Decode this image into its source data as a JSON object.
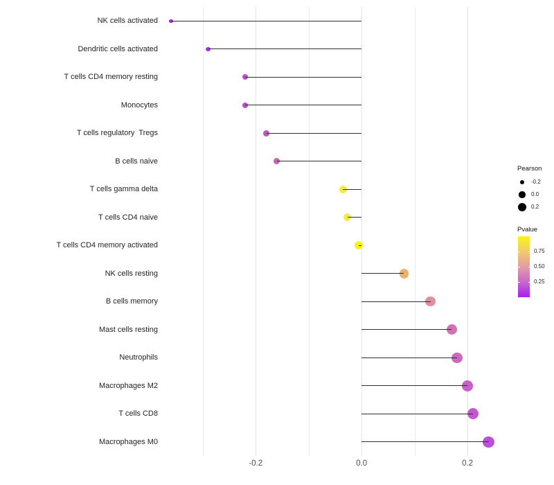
{
  "chart_data": {
    "type": "lollipop",
    "orientation": "horizontal",
    "title": "",
    "xlabel": "",
    "ylabel": "",
    "x_axis": {
      "min": -0.373,
      "max": 0.281,
      "gridlines": [
        -0.3,
        -0.2,
        -0.1,
        0,
        0.1,
        0.2
      ],
      "major_ticks": [
        -0.2,
        0,
        0.2
      ],
      "ticks": [
        {
          "value": -0.2,
          "label": "-0.2"
        },
        {
          "value": 0.0,
          "label": "0.0"
        },
        {
          "value": 0.2,
          "label": "0.2"
        }
      ]
    },
    "rows": [
      {
        "label": "NK cells activated",
        "pearson": -0.36,
        "pvalue_approx": 0.02,
        "color": "#9b2be1"
      },
      {
        "label": "Dendritic cells activated",
        "pearson": -0.29,
        "pvalue_approx": 0.09,
        "color": "#a637db"
      },
      {
        "label": "T cells CD4 memory resting",
        "pearson": -0.22,
        "pvalue_approx": 0.17,
        "color": "#b750c9"
      },
      {
        "label": "Monocytes",
        "pearson": -0.22,
        "pvalue_approx": 0.17,
        "color": "#b750c9"
      },
      {
        "label": "T cells regulatory  Tregs",
        "pearson": -0.18,
        "pvalue_approx": 0.25,
        "color": "#bf58be"
      },
      {
        "label": "B cells naive",
        "pearson": -0.16,
        "pvalue_approx": 0.31,
        "color": "#c564b1"
      },
      {
        "label": "T cells gamma delta",
        "pearson": -0.035,
        "pvalue_approx": 0.82,
        "color": "#f5e84b"
      },
      {
        "label": "T cells CD4 naive",
        "pearson": -0.027,
        "pvalue_approx": 0.84,
        "color": "#f6ea45"
      },
      {
        "label": "T cells CD4 memory activated",
        "pearson": -0.005,
        "pvalue_approx": 0.97,
        "color": "#fbf313"
      },
      {
        "label": "NK cells resting",
        "pearson": 0.08,
        "pvalue_approx": 0.63,
        "color": "#ecb06c"
      },
      {
        "label": "B cells memory",
        "pearson": 0.13,
        "pvalue_approx": 0.45,
        "color": "#e08f9f"
      },
      {
        "label": "Mast cells resting",
        "pearson": 0.17,
        "pvalue_approx": 0.33,
        "color": "#d173b3"
      },
      {
        "label": "Neutrophils",
        "pearson": 0.18,
        "pvalue_approx": 0.3,
        "color": "#cc69be"
      },
      {
        "label": "Macrophages M2",
        "pearson": 0.2,
        "pvalue_approx": 0.25,
        "color": "#c75eca"
      },
      {
        "label": "T cells CD8",
        "pearson": 0.21,
        "pvalue_approx": 0.22,
        "color": "#c257d1"
      },
      {
        "label": "Macrophages M0",
        "pearson": 0.24,
        "pvalue_approx": 0.15,
        "color": "#bc50db"
      }
    ],
    "legend": {
      "pearson": {
        "title": "Pearson",
        "dot_color": "#000000",
        "entries": [
          {
            "label": "-0.2",
            "value": -0.2
          },
          {
            "label": "0.0",
            "value": 0.0
          },
          {
            "label": "0.2",
            "value": 0.2
          }
        ]
      },
      "pvalue": {
        "title": "Pvalue",
        "tick_labels": [
          "0.75",
          "0.50",
          "0.25"
        ],
        "gradient_top_to_bottom": [
          "#fcf41b",
          "#f2c969",
          "#e39ca4",
          "#c868cb",
          "#a51ff0"
        ]
      }
    }
  },
  "style_colors": {
    "segment": "#2e2e2e",
    "gridline": "#ebebeb",
    "axis_text": "#4d4d4d",
    "label_text": "#1f1f1f"
  }
}
